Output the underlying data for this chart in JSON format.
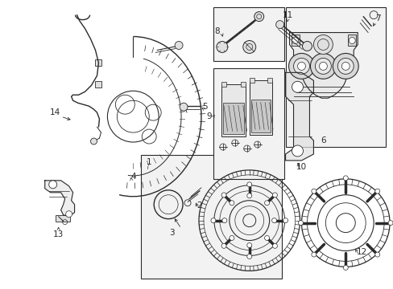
{
  "bg_color": "#ffffff",
  "line_color": "#2a2a2a",
  "box_bg": "#f0f0f0",
  "figsize": [
    4.89,
    3.6
  ],
  "dpi": 100
}
